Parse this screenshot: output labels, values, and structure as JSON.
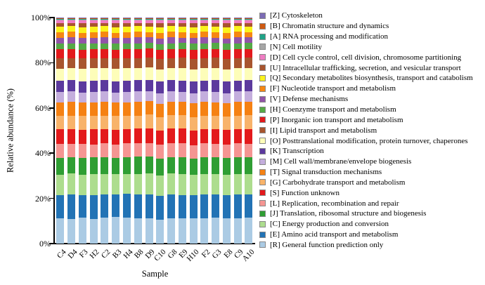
{
  "figure": {
    "background": "#ffffff"
  },
  "chart_data": {
    "type": "bar",
    "stacked": true,
    "title": "",
    "xlabel": "Sample",
    "ylabel": "Relative abundance (%)",
    "ylim": [
      0,
      100
    ],
    "grid": false,
    "legend_position": "right",
    "ytick_labels": [
      "0%",
      "20%",
      "40%",
      "60%",
      "80%",
      "100%"
    ],
    "categories": [
      "C4",
      "D4",
      "F3",
      "H2",
      "C2",
      "B3",
      "H4",
      "B8",
      "D9",
      "C10",
      "G8",
      "E9",
      "H10",
      "F2",
      "G3",
      "E8",
      "C9",
      "A10"
    ],
    "series_note": "series listed bottom-to-top of stack; legend displays reverse order (top of stack first)",
    "series": [
      {
        "code": "R",
        "legend_label": "[R] General function prediction only",
        "color": "#abcbe4",
        "values": [
          11.2,
          11.0,
          11.4,
          10.8,
          11.5,
          11.7,
          11.5,
          11.3,
          11.1,
          10.6,
          11.2,
          11.0,
          11.3,
          11.1,
          11.5,
          11.2,
          11.0,
          11.4
        ]
      },
      {
        "code": "E",
        "legend_label": "[E] Amino acid transport and metabolism",
        "color": "#2273b5",
        "values": [
          10.3,
          10.7,
          10.2,
          10.8,
          10.3,
          10.2,
          10.5,
          10.4,
          10.7,
          10.7,
          10.6,
          10.5,
          10.2,
          10.6,
          10.1,
          10.5,
          10.7,
          10.3
        ]
      },
      {
        "code": "C",
        "legend_label": "[C] Energy production and conversion",
        "color": "#addd8e",
        "values": [
          9.0,
          9.2,
          8.8,
          9.1,
          8.9,
          9.0,
          8.8,
          9.2,
          9.4,
          8.9,
          9.1,
          9.0,
          9.2,
          8.8,
          9.0,
          9.1,
          8.9,
          9.0
        ]
      },
      {
        "code": "J",
        "legend_label": "[J] Translation, ribosomal structure and biogenesis",
        "color": "#2f9e33",
        "values": [
          7.5,
          7.3,
          7.6,
          7.4,
          7.5,
          7.2,
          7.4,
          7.5,
          7.4,
          7.6,
          7.4,
          7.5,
          7.2,
          7.6,
          7.4,
          7.3,
          7.5,
          7.4
        ]
      },
      {
        "code": "L",
        "legend_label": "[L] Replication, recombination and repair",
        "color": "#f59592",
        "values": [
          6.1,
          6.0,
          6.2,
          5.9,
          6.1,
          6.0,
          6.2,
          6.0,
          5.9,
          6.1,
          6.0,
          6.2,
          5.9,
          6.1,
          6.0,
          6.2,
          6.0,
          6.1
        ]
      },
      {
        "code": "S",
        "legend_label": "[S] Function unknown",
        "color": "#e31a1c",
        "values": [
          6.4,
          6.5,
          6.3,
          6.6,
          6.4,
          6.5,
          6.3,
          6.4,
          6.6,
          6.3,
          6.5,
          6.4,
          6.6,
          6.3,
          6.5,
          6.4,
          6.3,
          6.5
        ]
      },
      {
        "code": "G",
        "legend_label": "[G] Carbohydrate transport and metabolism",
        "color": "#f8b36a",
        "values": [
          6.0,
          5.9,
          6.1,
          6.0,
          5.8,
          6.1,
          6.0,
          5.9,
          6.1,
          6.0,
          5.9,
          6.0,
          6.1,
          5.9,
          6.0,
          6.1,
          5.9,
          6.0
        ]
      },
      {
        "code": "T",
        "legend_label": "[T] Signal transduction mechanisms",
        "color": "#f58113",
        "values": [
          6.0,
          6.1,
          5.9,
          6.0,
          6.2,
          5.9,
          6.0,
          6.1,
          5.9,
          6.0,
          6.1,
          5.9,
          6.0,
          6.1,
          5.9,
          6.0,
          6.2,
          5.9
        ]
      },
      {
        "code": "M",
        "legend_label": "[M] Cell wall/membrane/envelope biogenesis",
        "color": "#c4aedd",
        "values": [
          4.5,
          4.6,
          4.4,
          4.5,
          4.7,
          4.4,
          4.5,
          4.6,
          4.4,
          4.6,
          4.5,
          4.4,
          4.6,
          4.5,
          4.7,
          4.4,
          4.5,
          4.6
        ]
      },
      {
        "code": "K",
        "legend_label": "[K] Transcription",
        "color": "#5c3a9e",
        "values": [
          5.0,
          4.9,
          5.1,
          5.0,
          4.9,
          5.1,
          5.0,
          4.9,
          5.0,
          5.1,
          4.9,
          5.0,
          5.1,
          4.9,
          5.0,
          5.1,
          4.9,
          5.0
        ]
      },
      {
        "code": "O",
        "legend_label": "[O] Posttranslational modification, protein turnover, chaperones",
        "color": "#fdfdb9",
        "values": [
          5.5,
          5.4,
          5.6,
          5.5,
          5.4,
          5.6,
          5.5,
          5.4,
          5.6,
          5.5,
          5.4,
          5.5,
          5.6,
          5.4,
          5.5,
          5.6,
          5.4,
          5.5
        ]
      },
      {
        "code": "I",
        "legend_label": "[I] Lipid transport and metabolism",
        "color": "#a8552e",
        "values": [
          4.5,
          4.4,
          4.6,
          4.5,
          4.4,
          4.6,
          4.5,
          4.4,
          4.5,
          4.6,
          4.4,
          4.5,
          4.6,
          4.4,
          4.5,
          4.6,
          4.4,
          4.5
        ]
      },
      {
        "code": "P",
        "legend_label": "[P] Inorganic ion transport and metabolism",
        "color": "#e31a1c",
        "values": [
          4.0,
          4.1,
          3.9,
          4.0,
          4.1,
          3.9,
          4.0,
          4.1,
          3.9,
          4.0,
          4.1,
          3.9,
          4.0,
          4.1,
          3.9,
          4.0,
          4.1,
          3.9
        ]
      },
      {
        "code": "H",
        "legend_label": "[H] Coenzyme transport and metabolism",
        "color": "#55a946",
        "values": [
          2.6,
          2.5,
          2.7,
          2.6,
          2.5,
          2.7,
          2.6,
          2.5,
          2.6,
          2.7,
          2.5,
          2.6,
          2.7,
          2.5,
          2.6,
          2.7,
          2.5,
          2.6
        ]
      },
      {
        "code": "V",
        "legend_label": "[V] Defense mechanisms",
        "color": "#9254a8",
        "values": [
          2.5,
          2.6,
          2.4,
          2.5,
          2.6,
          2.4,
          2.5,
          2.6,
          2.4,
          2.5,
          2.6,
          2.4,
          2.5,
          2.6,
          2.4,
          2.5,
          2.6,
          2.4
        ]
      },
      {
        "code": "F",
        "legend_label": "[F] Nucleotide transport and metabolism",
        "color": "#f68712",
        "values": [
          2.4,
          2.5,
          2.3,
          2.4,
          2.5,
          2.3,
          2.4,
          2.5,
          2.3,
          2.4,
          2.5,
          2.3,
          2.4,
          2.5,
          2.3,
          2.4,
          2.5,
          2.3
        ]
      },
      {
        "code": "Q",
        "legend_label": "[Q] Secondary metabolites biosynthesis, transport and catabolism",
        "color": "#faf31d",
        "values": [
          2.5,
          2.4,
          2.6,
          2.5,
          2.4,
          2.6,
          2.5,
          2.4,
          2.5,
          2.6,
          2.4,
          2.5,
          2.6,
          2.4,
          2.5,
          2.6,
          2.4,
          2.5
        ]
      },
      {
        "code": "U",
        "legend_label": "[U] Intracellular trafficking, secretion, and vesicular transport",
        "color": "#a8552e",
        "values": [
          1.5,
          1.4,
          1.6,
          1.5,
          1.4,
          1.6,
          1.5,
          1.4,
          1.5,
          1.6,
          1.4,
          1.5,
          1.6,
          1.4,
          1.5,
          1.6,
          1.4,
          1.5
        ]
      },
      {
        "code": "D",
        "legend_label": "[D] Cell cycle control, cell division, chromosome partitioning",
        "color": "#ef7dc3",
        "values": [
          1.2,
          1.1,
          1.3,
          1.2,
          1.1,
          1.3,
          1.2,
          1.1,
          1.2,
          1.3,
          1.1,
          1.2,
          1.3,
          1.1,
          1.2,
          1.3,
          1.1,
          1.2
        ]
      },
      {
        "code": "N",
        "legend_label": "[N] Cell motility",
        "color": "#a6a6a6",
        "values": [
          0.4,
          0.4,
          0.4,
          0.4,
          0.4,
          0.4,
          0.4,
          0.4,
          0.4,
          0.4,
          0.4,
          0.4,
          0.4,
          0.4,
          0.4,
          0.4,
          0.4,
          0.4
        ]
      },
      {
        "code": "A",
        "legend_label": "[A] RNA processing and modification",
        "color": "#20a387",
        "values": [
          0.4,
          0.4,
          0.4,
          0.4,
          0.4,
          0.4,
          0.4,
          0.4,
          0.4,
          0.4,
          0.4,
          0.4,
          0.4,
          0.4,
          0.4,
          0.4,
          0.4,
          0.4
        ]
      },
      {
        "code": "B",
        "legend_label": "[B] Chromatin structure and dynamics",
        "color": "#cf5a12",
        "values": [
          0.3,
          0.3,
          0.3,
          0.3,
          0.3,
          0.3,
          0.3,
          0.3,
          0.3,
          0.3,
          0.3,
          0.3,
          0.3,
          0.3,
          0.3,
          0.3,
          0.3,
          0.3
        ]
      },
      {
        "code": "Z",
        "legend_label": "[Z] Cytoskeleton",
        "color": "#7c6bb5",
        "values": [
          0.2,
          0.2,
          0.2,
          0.2,
          0.2,
          0.2,
          0.2,
          0.2,
          0.2,
          0.2,
          0.2,
          0.2,
          0.2,
          0.2,
          0.2,
          0.2,
          0.2,
          0.2
        ]
      }
    ]
  }
}
